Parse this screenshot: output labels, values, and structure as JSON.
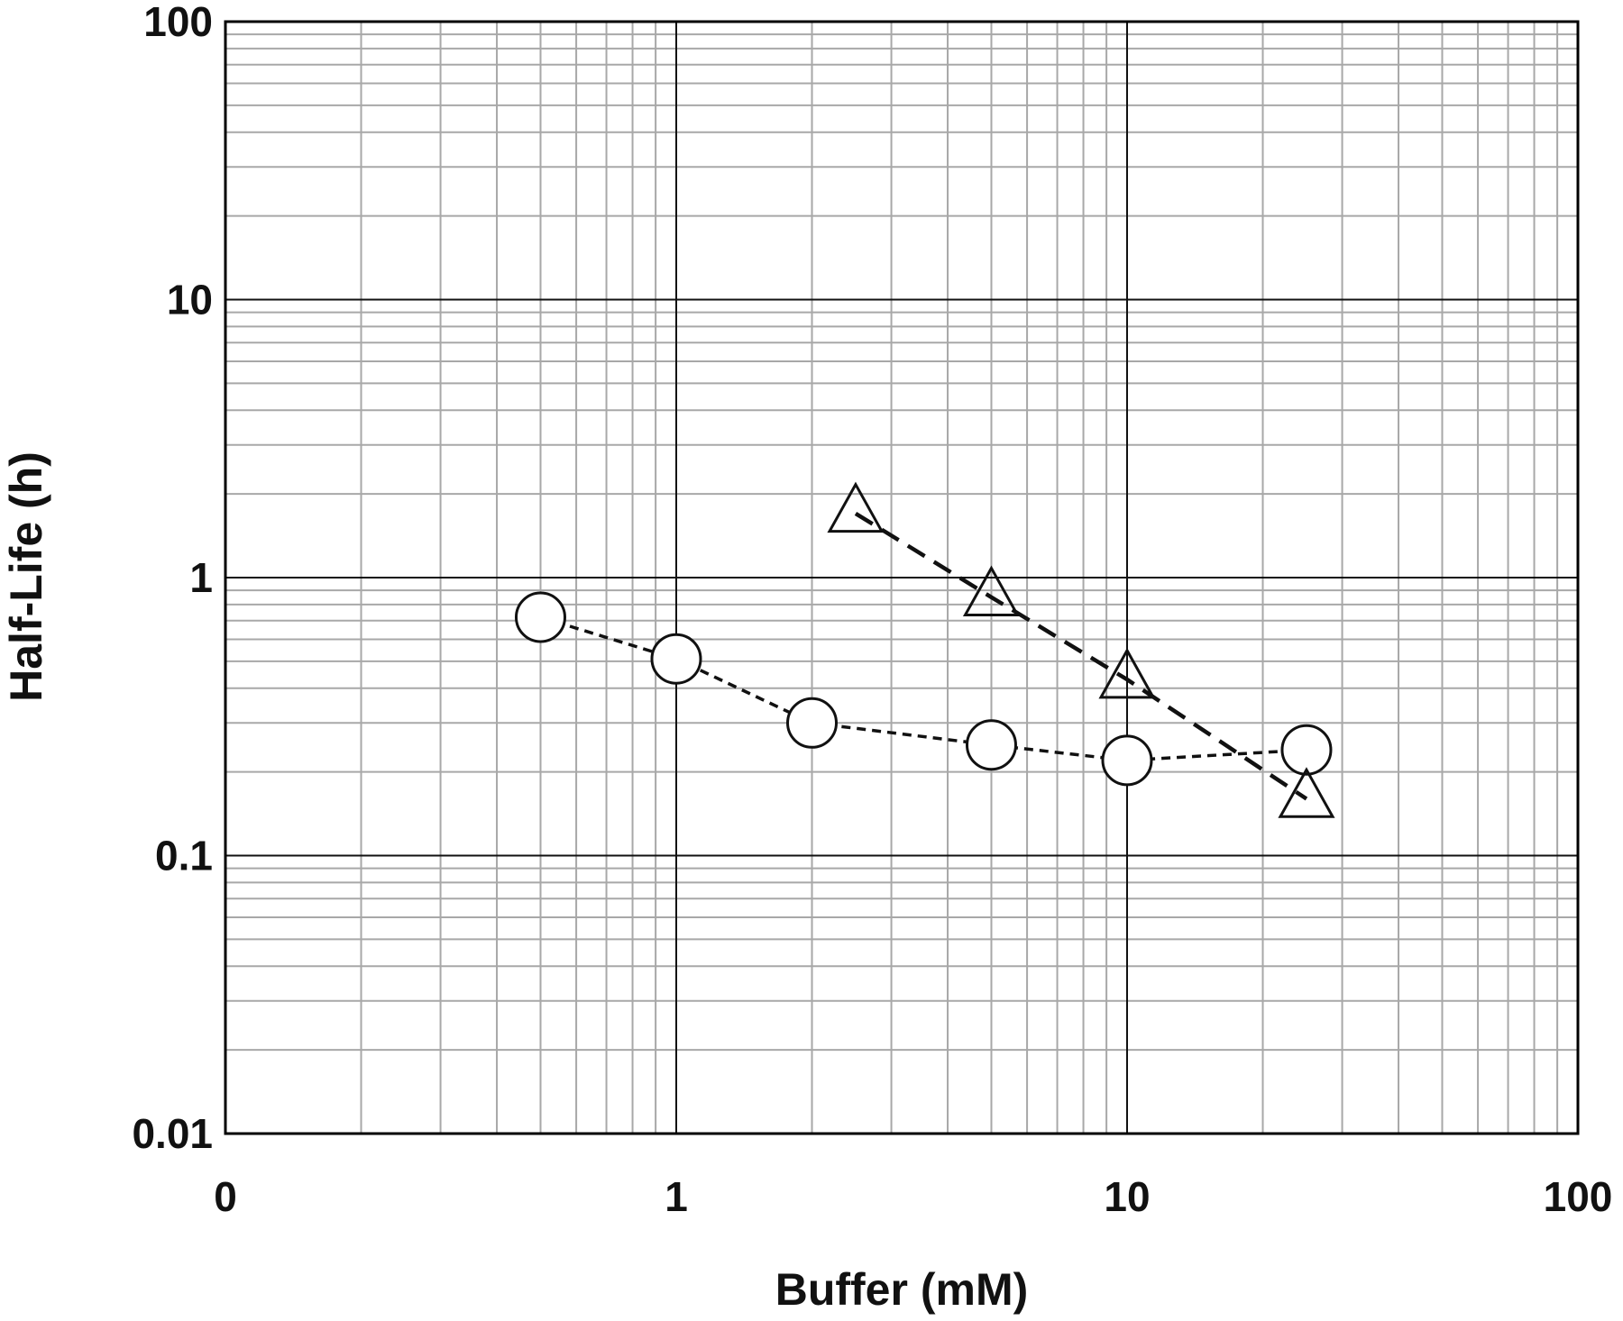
{
  "chart_data": {
    "type": "scatter",
    "title": "",
    "xlabel": "Buffer (mM)",
    "ylabel": "Half-Life (h)",
    "x_scale": "log",
    "y_scale": "log",
    "xlim": [
      0.1,
      100
    ],
    "ylim": [
      0.01,
      100
    ],
    "grid": true,
    "x_tick_labels": [
      "0",
      "1",
      "10",
      "100"
    ],
    "y_tick_labels": [
      "0.01",
      "0.1",
      "1",
      "10",
      "100"
    ],
    "series": [
      {
        "marker": "circle",
        "line": "dashed",
        "x": [
          0.5,
          1,
          2,
          5,
          10,
          25
        ],
        "y": [
          0.72,
          0.51,
          0.3,
          0.25,
          0.22,
          0.24
        ]
      },
      {
        "marker": "triangle",
        "line": "dashed",
        "x": [
          2.5,
          5,
          10,
          25
        ],
        "y": [
          1.7,
          0.85,
          0.43,
          0.16
        ]
      }
    ]
  }
}
